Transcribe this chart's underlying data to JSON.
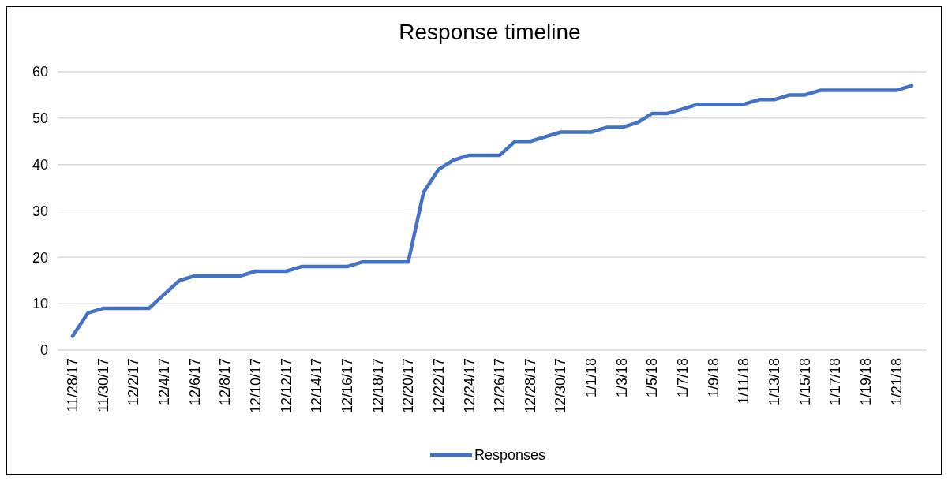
{
  "chart_data": {
    "type": "line",
    "title": "Response timeline",
    "categories": [
      "11/28/17",
      null,
      "11/30/17",
      null,
      "12/2/17",
      null,
      "12/4/17",
      null,
      "12/6/17",
      null,
      "12/8/17",
      null,
      "12/10/17",
      null,
      "12/12/17",
      null,
      "12/14/17",
      null,
      "12/16/17",
      null,
      "12/18/17",
      null,
      "12/20/17",
      null,
      "12/22/17",
      null,
      "12/24/17",
      null,
      "12/26/17",
      null,
      "12/28/17",
      null,
      "12/30/17",
      null,
      "1/1/18",
      null,
      "1/3/18",
      null,
      "1/5/18",
      null,
      "1/7/18",
      null,
      "1/9/18",
      null,
      "1/11/18",
      null,
      "1/13/18",
      null,
      "1/15/18",
      null,
      "1/17/18",
      null,
      "1/19/18",
      null,
      "1/21/18",
      null
    ],
    "series": [
      {
        "name": "Responses",
        "color": "#4472c4",
        "values": [
          3,
          8,
          9,
          9,
          9,
          9,
          12,
          15,
          16,
          16,
          16,
          16,
          17,
          17,
          17,
          18,
          18,
          18,
          18,
          19,
          19,
          19,
          19,
          34,
          39,
          41,
          42,
          42,
          42,
          45,
          45,
          46,
          47,
          47,
          47,
          48,
          48,
          49,
          51,
          51,
          52,
          53,
          53,
          53,
          53,
          54,
          54,
          55,
          55,
          56,
          56,
          56,
          56,
          56,
          56,
          57
        ]
      }
    ],
    "ylim": [
      0,
      60
    ],
    "yticks": [
      0,
      10,
      20,
      30,
      40,
      50,
      60
    ],
    "grid": "y",
    "legend": "bottom",
    "marker": "none",
    "line_style": "solid"
  }
}
